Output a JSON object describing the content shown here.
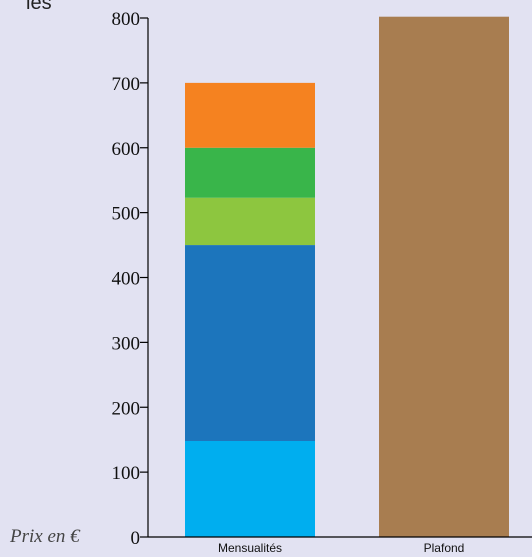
{
  "corner_text": "les",
  "y_unit_label": "Prix en €",
  "chart_data": {
    "type": "bar",
    "stacked": true,
    "categories": [
      "Mensualités",
      "Plafond"
    ],
    "ylim": [
      0,
      800
    ],
    "yticks": [
      0,
      100,
      200,
      300,
      400,
      500,
      600,
      700,
      800
    ],
    "ylabel": "Prix en €",
    "grid": false,
    "legend": "none",
    "bars": [
      {
        "category": "Mensualités",
        "segments": [
          {
            "value": 148,
            "color": "#00aeef"
          },
          {
            "value": 302,
            "color": "#1c75bc"
          },
          {
            "value": 73,
            "color": "#8dc63f"
          },
          {
            "value": 77,
            "color": "#39b54a"
          },
          {
            "value": 100,
            "color": "#f58220"
          }
        ],
        "total": 700
      },
      {
        "category": "Plafond",
        "segments": [
          {
            "value": 802,
            "color": "#a87d50"
          }
        ],
        "total": 802
      }
    ],
    "axis_color": "#000000"
  }
}
